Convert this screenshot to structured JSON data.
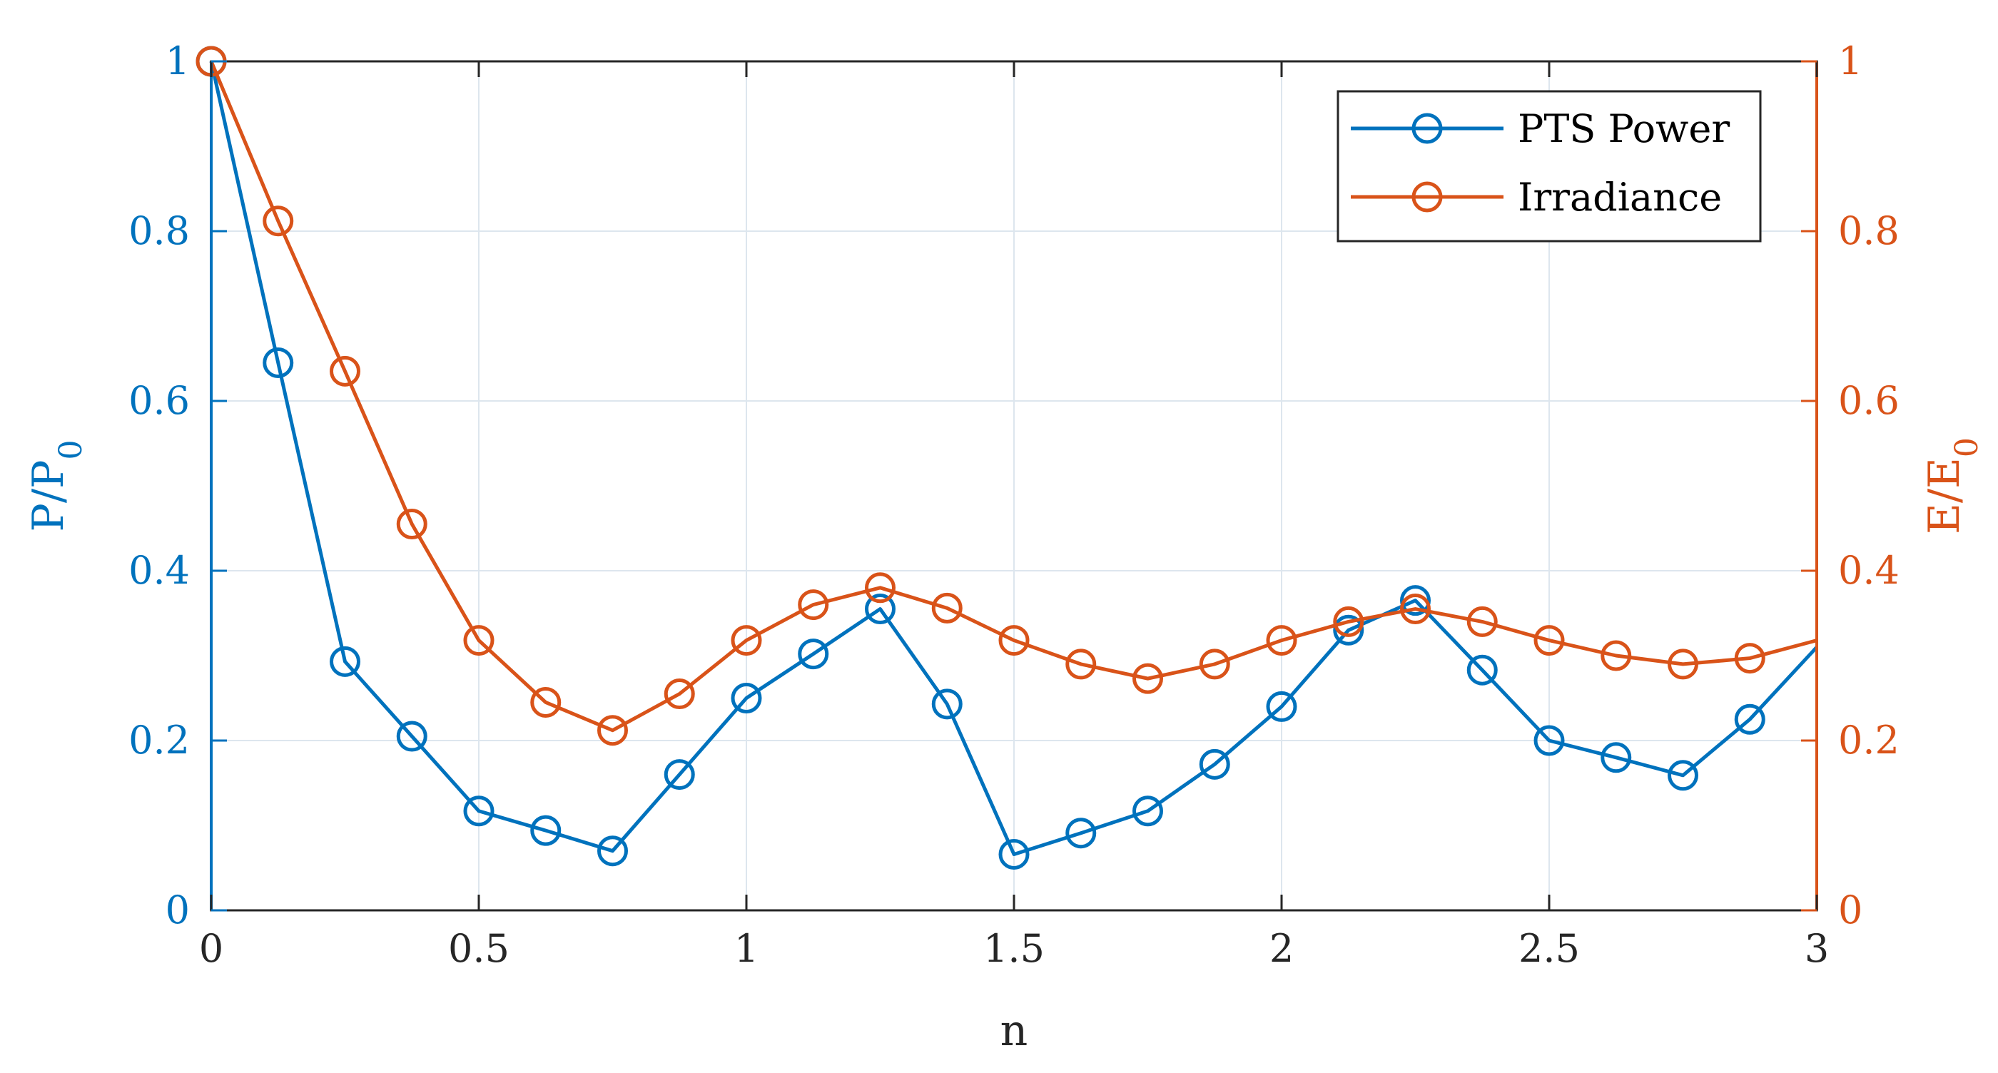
{
  "chart_data": {
    "type": "line",
    "xlabel": "n",
    "ylabel_left": {
      "main": "P/P",
      "sub": "0"
    },
    "ylabel_right": {
      "main": "E/E",
      "sub": "0"
    },
    "xlim": [
      0,
      3
    ],
    "ylim_left": [
      0,
      1
    ],
    "ylim_right": [
      0,
      1
    ],
    "x_ticks": [
      "0",
      "0.5",
      "1",
      "1.5",
      "2",
      "2.5",
      "3"
    ],
    "y_ticks_left": [
      "0",
      "0.2",
      "0.4",
      "0.6",
      "0.8",
      "1"
    ],
    "y_ticks_right": [
      "0",
      "0.2",
      "0.4",
      "0.6",
      "0.8",
      "1"
    ],
    "grid": true,
    "legend_position": "top-right",
    "colors": {
      "left_axis": "#0072BD",
      "right_axis": "#D95319",
      "frame": "#262626",
      "grid": "#DDE6EE"
    },
    "x": [
      0,
      0.125,
      0.25,
      0.375,
      0.5,
      0.625,
      0.75,
      0.875,
      1,
      1.125,
      1.25,
      1.375,
      1.5,
      1.625,
      1.75,
      1.875,
      2,
      2.125,
      2.25,
      2.375,
      2.5,
      2.625,
      2.75,
      2.875,
      3
    ],
    "series": [
      {
        "name": "PTS Power",
        "axis": "left",
        "color": "#0072BD",
        "values": [
          1.0,
          0.645,
          0.293,
          0.205,
          0.117,
          0.094,
          0.07,
          0.16,
          0.25,
          0.302,
          0.355,
          0.243,
          0.066,
          0.091,
          0.117,
          0.172,
          0.24,
          0.33,
          0.365,
          0.283,
          0.2,
          0.18,
          0.159,
          0.225,
          0.31
        ],
        "markers": [
          true,
          true,
          true,
          true,
          true,
          true,
          true,
          true,
          true,
          true,
          true,
          true,
          true,
          true,
          true,
          true,
          true,
          true,
          true,
          true,
          true,
          true,
          true,
          true,
          false
        ]
      },
      {
        "name": "Irradiance",
        "axis": "right",
        "color": "#D95319",
        "values": [
          1.0,
          0.812,
          0.635,
          0.455,
          0.318,
          0.245,
          0.212,
          0.255,
          0.318,
          0.36,
          0.38,
          0.356,
          0.318,
          0.29,
          0.273,
          0.29,
          0.318,
          0.34,
          0.355,
          0.34,
          0.318,
          0.3,
          0.29,
          0.297,
          0.318
        ],
        "markers": [
          true,
          true,
          true,
          true,
          true,
          true,
          true,
          true,
          true,
          true,
          true,
          true,
          true,
          true,
          true,
          true,
          true,
          true,
          true,
          true,
          true,
          true,
          true,
          true,
          false
        ]
      }
    ]
  }
}
